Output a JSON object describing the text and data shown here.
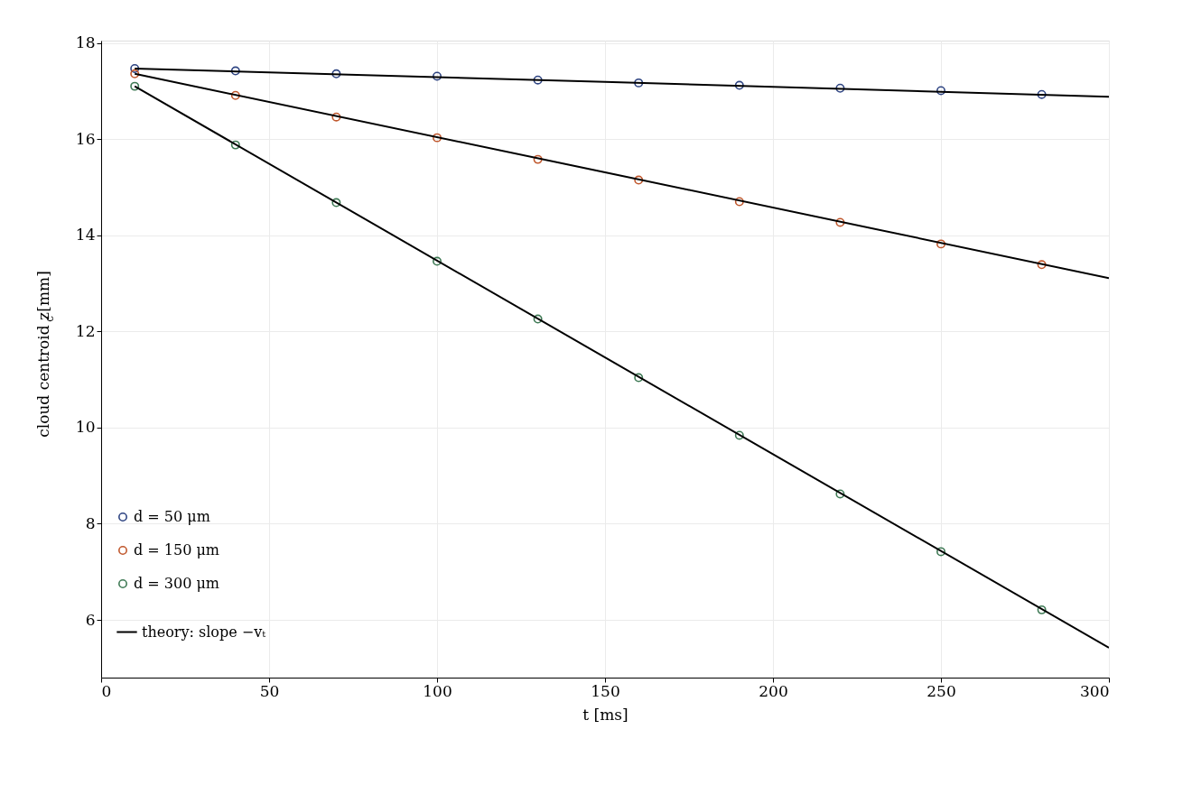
{
  "chart_data": {
    "type": "scatter",
    "xlabel": "t [ms]",
    "ylabel": "cloud centroid z$_{c}$ [mm]",
    "xlim": [
      0,
      300
    ],
    "ylim": [
      4.8,
      18.05
    ],
    "xticks": [
      0,
      50,
      100,
      150,
      200,
      250,
      300
    ],
    "yticks": [
      6,
      8,
      10,
      12,
      14,
      16,
      18
    ],
    "grid": true,
    "legend": "bottom left",
    "marker": "circle",
    "x": [
      10,
      40,
      70,
      100,
      130,
      160,
      190,
      220,
      250,
      280
    ],
    "series": [
      {
        "name": "d = 50 μm",
        "color": "#2e4482",
        "values": [
          17.47,
          17.42,
          17.36,
          17.31,
          17.23,
          17.17,
          17.12,
          17.06,
          17.01,
          16.93
        ]
      },
      {
        "name": "d = 150 μm",
        "color": "#c0582d",
        "values": [
          17.36,
          16.91,
          16.46,
          16.03,
          15.58,
          15.15,
          14.7,
          14.27,
          13.82,
          13.39
        ]
      },
      {
        "name": "d = 300 μm",
        "color": "#3f7a55",
        "values": [
          17.1,
          15.88,
          14.68,
          13.46,
          12.26,
          11.04,
          9.84,
          8.62,
          7.42,
          6.21
        ]
      },
      {
        "name": "theory: slope −vₜ",
        "type": "line",
        "color": "#000000",
        "line_style": "solid",
        "marker": "none",
        "x": [
          10,
          150,
          300
        ],
        "values": [
          17.47,
          17.19,
          16.88
        ]
      },
      {
        "type": "line",
        "color": "#000000",
        "line_style": "solid",
        "marker": "none",
        "x": [
          10,
          150,
          300
        ],
        "values": [
          17.36,
          15.31,
          13.11
        ]
      },
      {
        "type": "line",
        "color": "#000000",
        "line_style": "solid",
        "marker": "none",
        "x": [
          10,
          150,
          300
        ],
        "values": [
          17.1,
          11.46,
          5.42
        ]
      }
    ]
  }
}
